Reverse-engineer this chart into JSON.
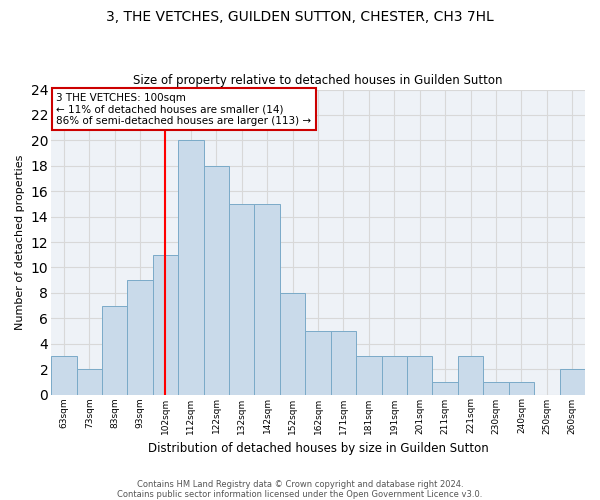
{
  "title": "3, THE VETCHES, GUILDEN SUTTON, CHESTER, CH3 7HL",
  "subtitle": "Size of property relative to detached houses in Guilden Sutton",
  "xlabel": "Distribution of detached houses by size in Guilden Sutton",
  "ylabel": "Number of detached properties",
  "categories": [
    "63sqm",
    "73sqm",
    "83sqm",
    "93sqm",
    "102sqm",
    "112sqm",
    "122sqm",
    "132sqm",
    "142sqm",
    "152sqm",
    "162sqm",
    "171sqm",
    "181sqm",
    "191sqm",
    "201sqm",
    "211sqm",
    "221sqm",
    "230sqm",
    "240sqm",
    "250sqm",
    "260sqm"
  ],
  "values": [
    3,
    2,
    7,
    9,
    11,
    20,
    18,
    15,
    15,
    8,
    5,
    5,
    3,
    3,
    3,
    1,
    3,
    1,
    1,
    0,
    2
  ],
  "bar_color": "#c9daea",
  "bar_edge_color": "#7aaac8",
  "red_line_index": 4,
  "annotation_text": "3 THE VETCHES: 100sqm\n← 11% of detached houses are smaller (14)\n86% of semi-detached houses are larger (113) →",
  "annotation_box_color": "#ffffff",
  "annotation_box_edge_color": "#cc0000",
  "ylim": [
    0,
    24
  ],
  "yticks": [
    0,
    2,
    4,
    6,
    8,
    10,
    12,
    14,
    16,
    18,
    20,
    22,
    24
  ],
  "grid_color": "#d8d8d8",
  "background_color": "#eef2f7",
  "footer_line1": "Contains HM Land Registry data © Crown copyright and database right 2024.",
  "footer_line2": "Contains public sector information licensed under the Open Government Licence v3.0."
}
